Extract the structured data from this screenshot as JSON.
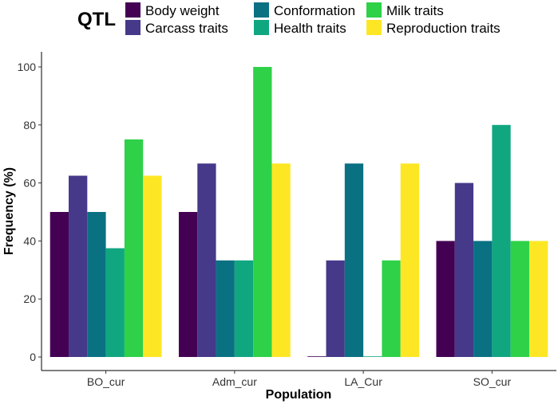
{
  "chart_data": {
    "type": "bar",
    "title": "",
    "xlabel": "Population",
    "ylabel": "Frequency (%)",
    "ylim": [
      0,
      105
    ],
    "yticks": [
      0,
      20,
      40,
      60,
      80,
      100
    ],
    "grid": false,
    "legend_position": "top",
    "legend_title": "QTL",
    "categories": [
      "BO_cur",
      "Adm_cur",
      "LA_Cur",
      "SO_cur"
    ],
    "series": [
      {
        "name": "Body weight",
        "color": "#440154",
        "values": [
          50,
          50,
          0,
          40
        ]
      },
      {
        "name": "Carcass traits",
        "color": "#46398a",
        "values": [
          62.5,
          66.7,
          33.3,
          60
        ]
      },
      {
        "name": "Conformation",
        "color": "#0a7183",
        "values": [
          50,
          33.3,
          66.7,
          40
        ]
      },
      {
        "name": "Health traits",
        "color": "#10a780",
        "values": [
          37.5,
          33.3,
          0,
          80
        ]
      },
      {
        "name": "Milk traits",
        "color": "#2ed148",
        "values": [
          75,
          100,
          33.3,
          40
        ]
      },
      {
        "name": "Reproduction traits",
        "color": "#fde725",
        "values": [
          62.5,
          66.7,
          66.7,
          40
        ]
      }
    ]
  }
}
